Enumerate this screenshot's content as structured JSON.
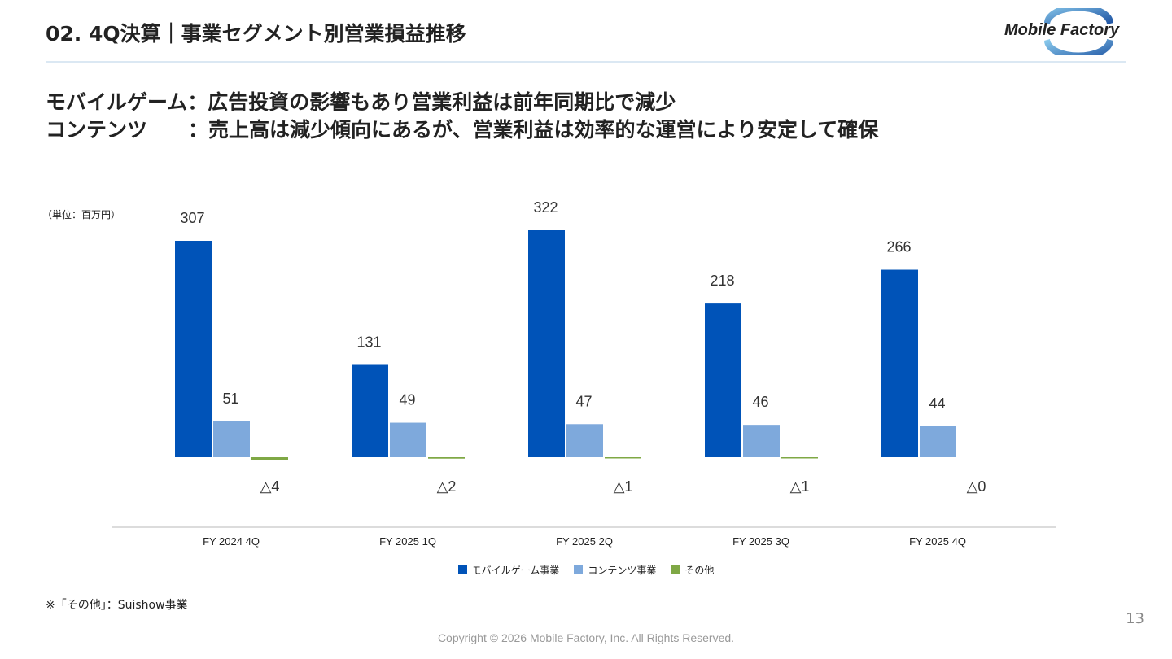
{
  "header": {
    "title": "02. 4Q決算｜事業セグメント別営業損益推移",
    "logo_text": "Mobile Factory"
  },
  "headlines": [
    "モバイルゲーム：広告投資の影響もあり営業利益は前年同期比で減少",
    "コンテンツ　　：売上高は減少傾向にあるが、営業利益は効率的な運営により安定して確保"
  ],
  "unit_label": "（単位：百万円）",
  "colors": {
    "mobile_game": "#0053b8",
    "contents": "#7ea9dc",
    "other": "#7fa845"
  },
  "chart_data": {
    "type": "bar",
    "categories": [
      "FY 2024 4Q",
      "FY 2025 1Q",
      "FY 2025 2Q",
      "FY 2025 3Q",
      "FY 2025 4Q"
    ],
    "series": [
      {
        "name": "モバイルゲーム事業",
        "values": [
          307,
          131,
          322,
          218,
          266
        ],
        "labels": [
          "307",
          "131",
          "322",
          "218",
          "266"
        ]
      },
      {
        "name": "コンテンツ事業",
        "values": [
          51,
          49,
          47,
          46,
          44
        ],
        "labels": [
          "51",
          "49",
          "47",
          "46",
          "44"
        ]
      },
      {
        "name": "その他",
        "values": [
          -4,
          -2,
          -1,
          -1,
          0
        ],
        "labels": [
          "△4",
          "△2",
          "△1",
          "△1",
          "△0"
        ]
      }
    ],
    "ylabel": "（単位：百万円）",
    "grid": false,
    "legend": "bottom"
  },
  "footnote": "※「その他」：Suishow事業",
  "page_number": "13",
  "copyright": "Copyright © 2026 Mobile Factory, Inc. All Rights Reserved."
}
